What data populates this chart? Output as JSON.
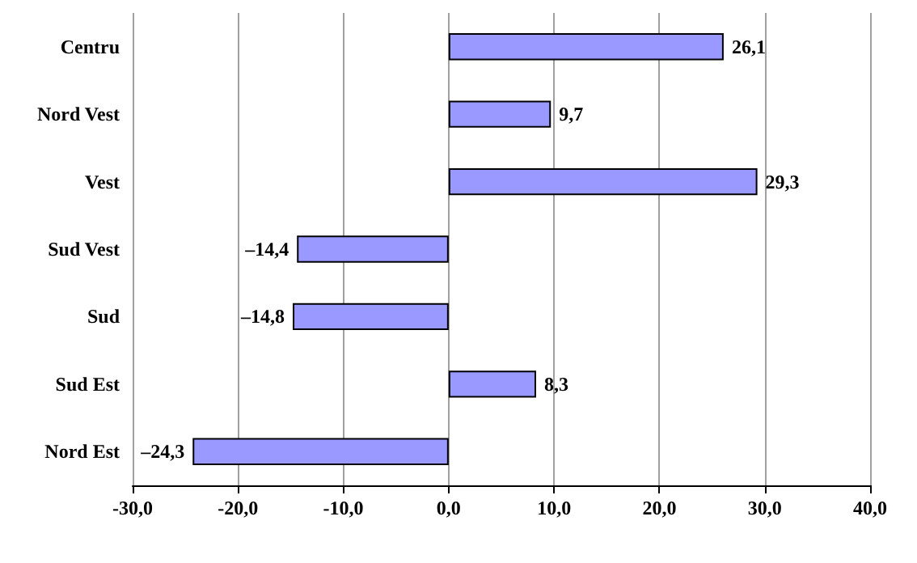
{
  "chart_data": {
    "type": "bar",
    "orientation": "horizontal",
    "categories": [
      "Centru",
      "Nord Vest",
      "Vest",
      "Sud Vest",
      "Sud",
      "Sud Est",
      "Nord Est"
    ],
    "values": [
      26.1,
      9.7,
      29.3,
      -14.4,
      -14.8,
      8.3,
      -24.3
    ],
    "value_labels": [
      "26,1",
      "9,7",
      "29,3",
      "–14,4",
      "–14,8",
      "8,3",
      "–24,3"
    ],
    "color": "#9999ff",
    "xlim": [
      -30,
      40
    ],
    "xticks": [
      {
        "value": -30,
        "label": "-30,0"
      },
      {
        "value": -20,
        "label": "-20,0"
      },
      {
        "value": -10,
        "label": "-10,0"
      },
      {
        "value": 0,
        "label": "0,0"
      },
      {
        "value": 10,
        "label": "10,0"
      },
      {
        "value": 20,
        "label": "20,0"
      },
      {
        "value": 30,
        "label": "30,0"
      },
      {
        "value": 40,
        "label": "40,0"
      }
    ],
    "grid": "x"
  }
}
